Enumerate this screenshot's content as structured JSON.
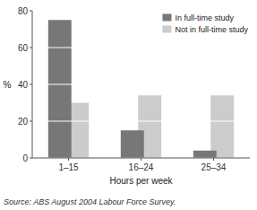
{
  "chart_data": {
    "type": "bar",
    "categories": [
      "1–15",
      "16–24",
      "25–34"
    ],
    "xlabel": "Hours per week",
    "ylabel": "%",
    "series": [
      {
        "name": "Not in full-time study",
        "color": "#cccccc",
        "values": [
          30,
          34,
          34
        ]
      },
      {
        "name": "In full-time study",
        "color": "#777777",
        "values": [
          75,
          15,
          4
        ]
      }
    ],
    "ylim": [
      0,
      80
    ],
    "yticks": [
      0,
      20,
      40,
      60,
      80
    ],
    "grid": true,
    "legend": "upper right",
    "annotations": [
      "Source: ABS August 2004 Labour Force Survey."
    ]
  }
}
